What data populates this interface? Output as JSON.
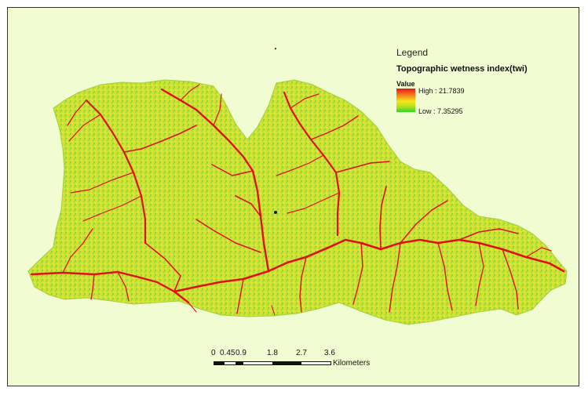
{
  "legend": {
    "title": "Legend",
    "layer_name": "Topographic wetness index(twi)",
    "field_name": "Value",
    "high_label": "High : 21.7839",
    "low_label": "Low : 7.35295",
    "high_value": 21.7839,
    "low_value": 7.35295,
    "ramp_colors": [
      "#e8141a",
      "#f58a1c",
      "#f6e61c",
      "#a4e020",
      "#36d228"
    ]
  },
  "scalebar": {
    "tick_labels": [
      "0",
      "0.45",
      "0.9",
      "1.8",
      "2.7",
      "3.6"
    ],
    "units": "Kilometers"
  },
  "map": {
    "background_color": "#f2fcd2",
    "raster_base_color": "#c8e830",
    "stream_color": "#e01010",
    "render_style": "stretched raster, green-yellow-red"
  }
}
